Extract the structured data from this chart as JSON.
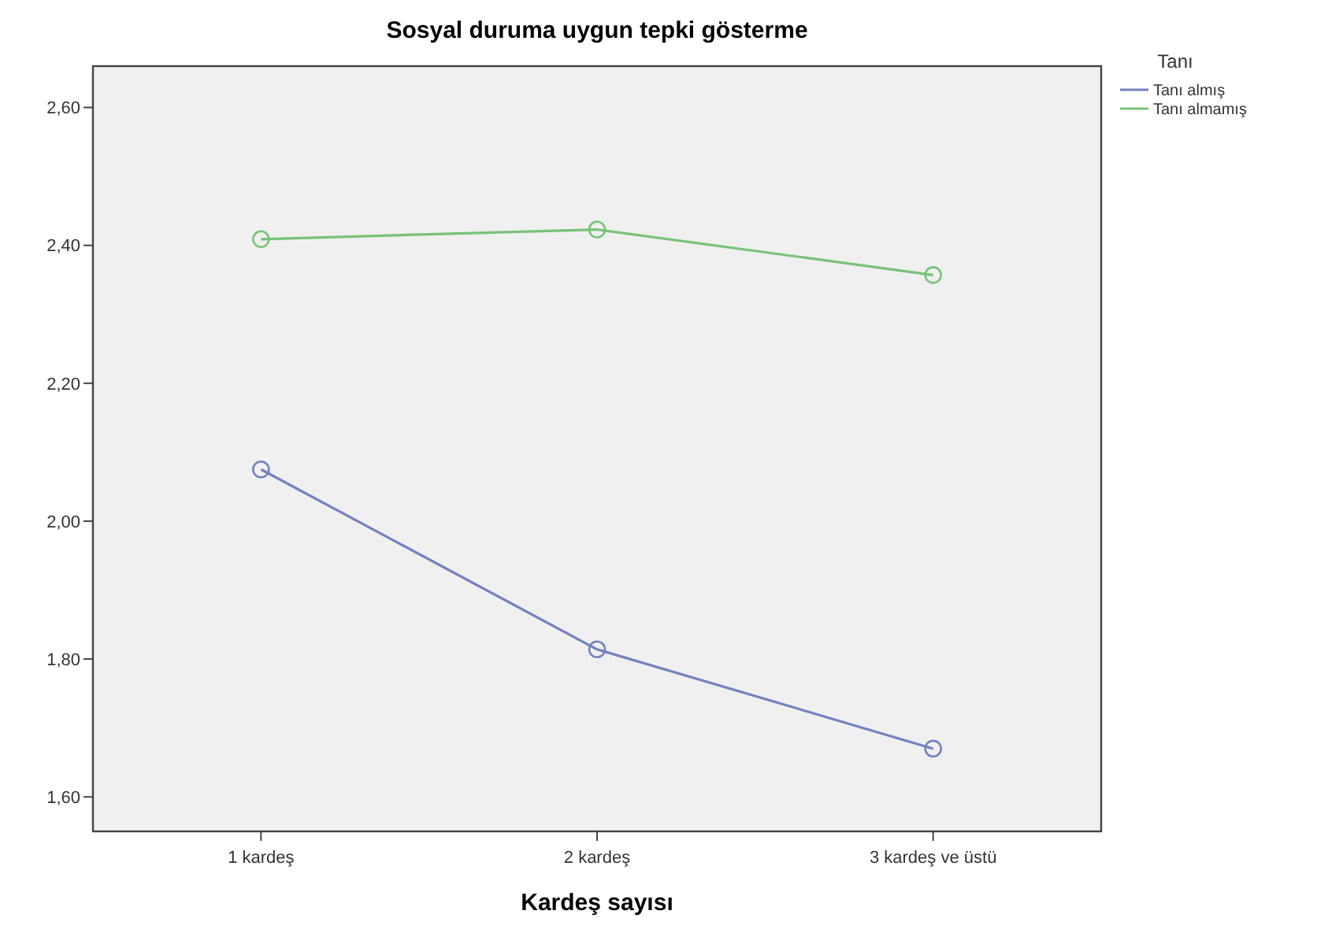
{
  "chart_data": {
    "type": "line",
    "title": "Sosyal duruma uygun tepki gösterme",
    "xlabel": "Kardeş sayısı",
    "legend_title": "Tanı",
    "categories": [
      "1 kardeş",
      "2 kardeş",
      "3 kardeş ve üstü"
    ],
    "series": [
      {
        "name": "Tanı almış",
        "color": "#7482c0",
        "values": [
          2.075,
          1.814,
          1.67
        ]
      },
      {
        "name": "Tanı almamış",
        "color": "#78c278",
        "values": [
          2.409,
          2.423,
          2.357
        ]
      }
    ],
    "ylim": [
      1.55,
      2.66
    ],
    "yticks": [
      {
        "value": 1.6,
        "label": "1,60"
      },
      {
        "value": 1.8,
        "label": "1,80"
      },
      {
        "value": 2.0,
        "label": "2,00"
      },
      {
        "value": 2.2,
        "label": "2,20"
      },
      {
        "value": 2.4,
        "label": "2,40"
      },
      {
        "value": 2.6,
        "label": "2,60"
      }
    ],
    "grid": false,
    "legend": "top right",
    "marker": "circle",
    "line_style": "solid"
  }
}
